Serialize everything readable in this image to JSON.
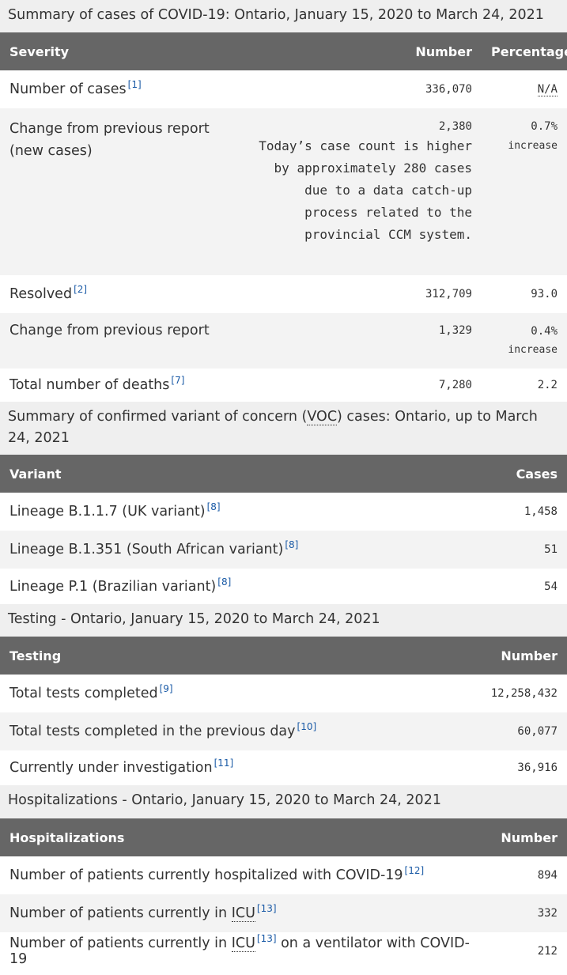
{
  "summary": {
    "caption": "Summary of cases of COVID-19: Ontario, January 15, 2020 to March 24, 2021",
    "headers": {
      "severity": "Severity",
      "number": "Number",
      "percentage": "Percentage"
    },
    "rows": [
      {
        "label": "Number of cases",
        "ref": "[1]",
        "number": "336,070",
        "pct": "N/A"
      },
      {
        "label": "Change from previous report (new cases)",
        "number": "2,380",
        "note": "Today’s case count is higher by approximately 280 cases due to a data catch-up process related to the provincial CCM system.",
        "pct": "0.7%",
        "pct_sub": "increase"
      },
      {
        "label": "Resolved",
        "ref": "[2]",
        "number": "312,709",
        "pct": "93.0"
      },
      {
        "label": "Change from previous report",
        "number": "1,329",
        "pct": "0.4%",
        "pct_sub": "increase"
      },
      {
        "label": "Total number of deaths",
        "ref": "[7]",
        "number": "7,280",
        "pct": "2.2"
      }
    ]
  },
  "variants": {
    "caption_pre": "Summary of confirmed variant of concern (",
    "caption_abbr": "VOC",
    "caption_post": ") cases: Ontario, up to March 24, 2021",
    "headers": {
      "variant": "Variant",
      "cases": "Cases"
    },
    "rows": [
      {
        "label": "Lineage B.1.1.7 (UK variant)",
        "ref": "[8]",
        "cases": "1,458"
      },
      {
        "label": "Lineage B.1.351 (South African variant)",
        "ref": "[8]",
        "cases": "51"
      },
      {
        "label": "Lineage P.1 (Brazilian variant)",
        "ref": "[8]",
        "cases": "54"
      }
    ]
  },
  "testing": {
    "caption": "Testing - Ontario, January 15, 2020 to March 24, 2021",
    "headers": {
      "testing": "Testing",
      "number": "Number"
    },
    "rows": [
      {
        "label": "Total tests completed",
        "ref": "[9]",
        "number": "12,258,432"
      },
      {
        "label": "Total tests completed in the previous day",
        "ref": "[10]",
        "number": "60,077"
      },
      {
        "label": "Currently under investigation",
        "ref": "[11]",
        "number": "36,916"
      }
    ]
  },
  "hospital": {
    "caption": "Hospitalizations - Ontario, January 15, 2020 to March 24, 2021",
    "headers": {
      "hospitalizations": "Hospitalizations",
      "number": "Number"
    },
    "rows": [
      {
        "label": "Number of patients currently hospitalized with COVID-19",
        "ref": "[12]",
        "number": "894"
      },
      {
        "label_pre": "Number of patients currently in ",
        "abbr": "ICU",
        "ref": "[13]",
        "number": "332"
      },
      {
        "label_pre": "Number of patients currently in ",
        "abbr": "ICU",
        "ref": "[13]",
        "label_post": " on a ventilator with COVID-19",
        "number": "212"
      }
    ]
  }
}
